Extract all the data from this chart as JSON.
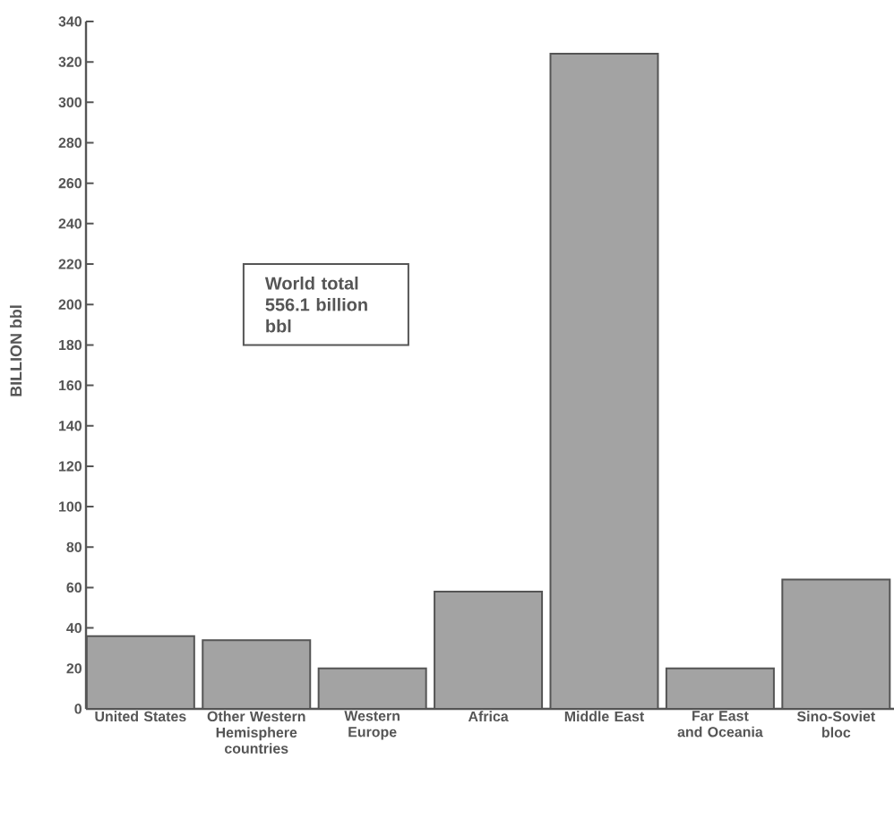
{
  "chart_data": {
    "type": "bar",
    "ylabel": "BILLION bbl",
    "categories": [
      "United States",
      "Other Western Hemisphere countries",
      "Western Europe",
      "Africa",
      "Middle East",
      "Far East and Oceania",
      "Sino-Soviet bloc"
    ],
    "values": [
      36,
      34,
      20,
      58,
      324,
      20,
      64
    ],
    "color": "#a3a3a3",
    "ylim": [
      0,
      340
    ],
    "yticks": [
      0,
      20,
      40,
      60,
      80,
      100,
      120,
      140,
      160,
      180,
      200,
      220,
      240,
      260,
      280,
      300,
      320,
      340
    ],
    "annotations": [
      "World total 556.1 billion bbl"
    ],
    "grid": false
  }
}
